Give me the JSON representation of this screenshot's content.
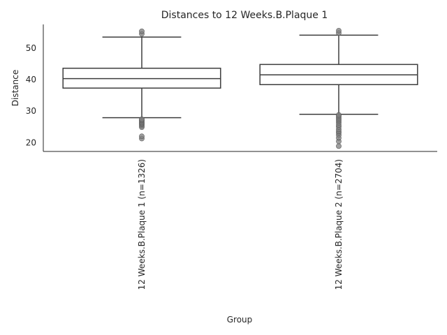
{
  "chart_data": {
    "type": "box",
    "title": "Distances to 12 Weeks.B.Plaque 1",
    "xlabel": "Group",
    "ylabel": "Distance",
    "categories": [
      "12 Weeks.B.Plaque 1 (n=1326)",
      "12 Weeks.B.Plaque 2 (n=2704)"
    ],
    "ylim": [
      17.2,
      57.5
    ],
    "yticks": [
      20,
      30,
      40,
      50
    ],
    "grid": false,
    "series": [
      {
        "whisker_low": 27.9,
        "q1": 37.3,
        "median": 40.3,
        "q3": 43.6,
        "whisker_high": 53.5,
        "outliers": [
          21.3,
          22.0,
          24.9,
          25.4,
          25.8,
          26.1,
          26.4,
          26.8,
          27.1,
          27.4,
          54.5,
          55.3
        ]
      },
      {
        "whisker_low": 29.0,
        "q1": 38.4,
        "median": 41.5,
        "q3": 44.8,
        "whisker_high": 54.1,
        "outliers": [
          18.9,
          20.4,
          21.5,
          22.4,
          23.1,
          23.6,
          24.2,
          25.0,
          25.6,
          26.3,
          26.9,
          27.4,
          27.9,
          28.4,
          28.8,
          54.8,
          55.5
        ]
      }
    ],
    "colors": {
      "box_stroke": "#3d3d3d",
      "outlier": "#7f7f7f",
      "axis": "#262626"
    }
  }
}
